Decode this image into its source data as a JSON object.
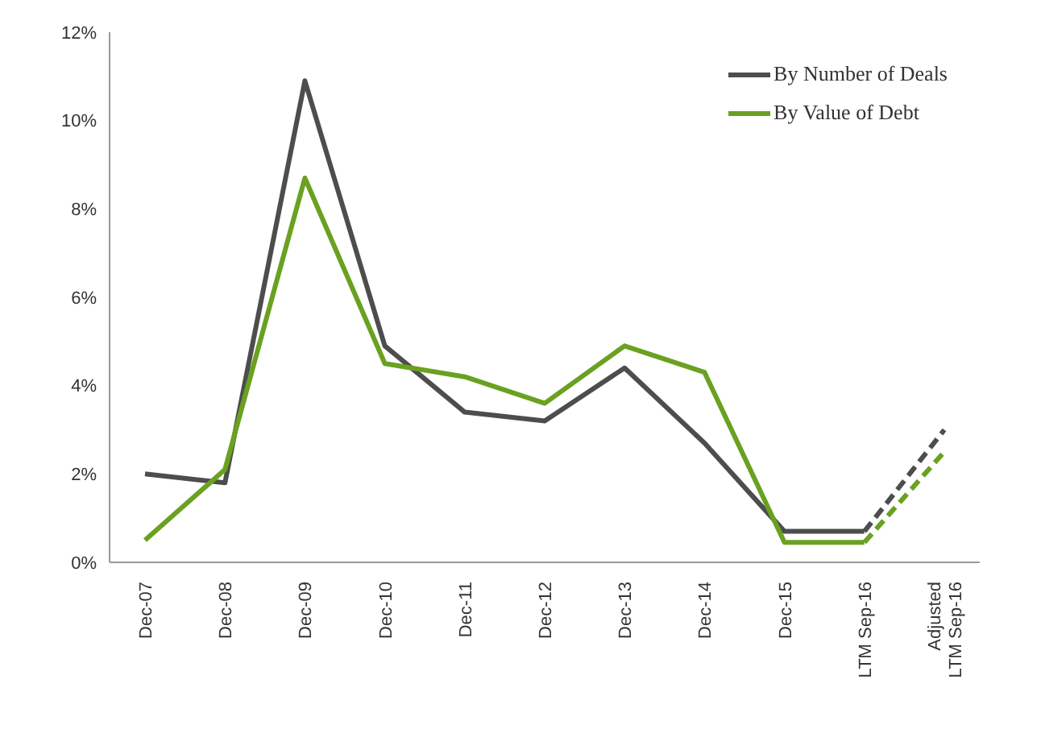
{
  "chart_data": {
    "type": "line",
    "categories": [
      "Dec-07",
      "Dec-08",
      "Dec-09",
      "Dec-10",
      "Dec-11",
      "Dec-12",
      "Dec-13",
      "Dec-14",
      "Dec-15",
      "LTM Sep-16",
      "Adjusted\nLTM Sep-16"
    ],
    "series": [
      {
        "name": "By Number of Deals",
        "color": "#4d4d4d",
        "line_style": "solid",
        "values": [
          2.0,
          1.8,
          10.9,
          4.9,
          3.4,
          3.2,
          4.4,
          2.7,
          0.7,
          0.7,
          null
        ]
      },
      {
        "name": "By Value of Debt",
        "color": "#6aa121",
        "line_style": "solid",
        "values": [
          0.5,
          2.1,
          8.7,
          4.5,
          4.2,
          3.6,
          4.9,
          4.3,
          0.45,
          0.45,
          null
        ]
      },
      {
        "color": "#4d4d4d",
        "line_style": "dashed",
        "values": [
          null,
          null,
          null,
          null,
          null,
          null,
          null,
          null,
          null,
          0.7,
          3.0
        ]
      },
      {
        "color": "#6aa121",
        "line_style": "dashed",
        "values": [
          null,
          null,
          null,
          null,
          null,
          null,
          null,
          null,
          null,
          0.45,
          2.5
        ]
      }
    ],
    "ylim": [
      0,
      12
    ],
    "yticks": [
      {
        "value": 0,
        "label": "0%"
      },
      {
        "value": 2,
        "label": "2%"
      },
      {
        "value": 4,
        "label": "4%"
      },
      {
        "value": 6,
        "label": "6%"
      },
      {
        "value": 8,
        "label": "8%"
      },
      {
        "value": 10,
        "label": "10%"
      },
      {
        "value": 12,
        "label": "12%"
      }
    ],
    "grid": false,
    "legend": "top right",
    "marker": "none"
  }
}
